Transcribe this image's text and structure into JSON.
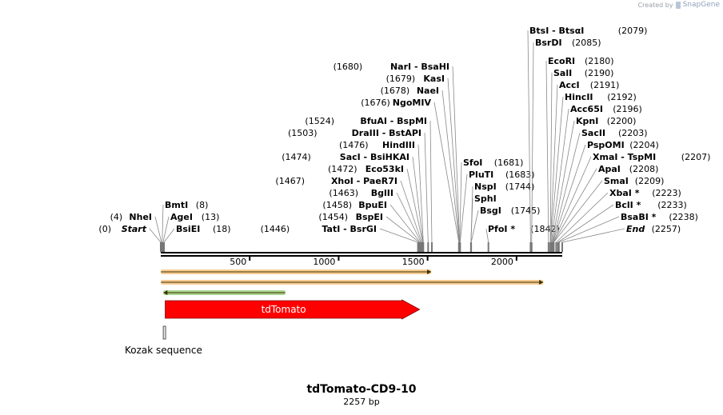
{
  "credit": {
    "prefix": "Created by",
    "brand": "SnapGene"
  },
  "map": {
    "name": "tdTomato-CD9-10",
    "length_label": "2257 bp",
    "length": 2257,
    "ticks": [
      {
        "pos": 500,
        "label": "500"
      },
      {
        "pos": 1000,
        "label": "1000"
      },
      {
        "pos": 1500,
        "label": "1500"
      },
      {
        "pos": 2000,
        "label": "2000"
      }
    ],
    "sites": [
      {
        "names": [
          "Start"
        ],
        "pos": 0,
        "pos_label": "(0)",
        "style": "italic"
      },
      {
        "names": [
          "NheI"
        ],
        "pos": 4,
        "pos_label": "(4)"
      },
      {
        "names": [
          "BmtI"
        ],
        "pos": 8,
        "pos_label": "(8)"
      },
      {
        "names": [
          "AgeI"
        ],
        "pos": 13,
        "pos_label": "(13)"
      },
      {
        "names": [
          "BsiEI"
        ],
        "pos": 18,
        "pos_label": "(18)"
      },
      {
        "names": [
          "TatI",
          "BsrGI"
        ],
        "pos": 1446,
        "pos_label": "(1446)"
      },
      {
        "names": [
          "BspEI"
        ],
        "pos": 1454,
        "pos_label": "(1454)"
      },
      {
        "names": [
          "BpuEI"
        ],
        "pos": 1458,
        "pos_label": "(1458)"
      },
      {
        "names": [
          "BglII"
        ],
        "pos": 1463,
        "pos_label": "(1463)"
      },
      {
        "names": [
          "XhoI",
          "PaeR7I"
        ],
        "pos": 1467,
        "pos_label": "(1467)"
      },
      {
        "names": [
          "Eco53kI"
        ],
        "pos": 1472,
        "pos_label": "(1472)"
      },
      {
        "names": [
          "SacI",
          "BsiHKAI"
        ],
        "pos": 1474,
        "pos_label": "(1474)"
      },
      {
        "names": [
          "HindIII"
        ],
        "pos": 1476,
        "pos_label": "(1476)"
      },
      {
        "names": [
          "DraIII",
          "BstAPI"
        ],
        "pos": 1503,
        "pos_label": "(1503)"
      },
      {
        "names": [
          "BfuAI",
          "BspMI"
        ],
        "pos": 1524,
        "pos_label": "(1524)"
      },
      {
        "names": [
          "NgoMIV"
        ],
        "pos": 1676,
        "pos_label": "(1676)"
      },
      {
        "names": [
          "NaeI"
        ],
        "pos": 1678,
        "pos_label": "(1678)"
      },
      {
        "names": [
          "KasI"
        ],
        "pos": 1679,
        "pos_label": "(1679)"
      },
      {
        "names": [
          "NarI",
          "BsaHI"
        ],
        "pos": 1680,
        "pos_label": "(1680)"
      },
      {
        "names": [
          "SfoI"
        ],
        "pos": 1681,
        "pos_label": "(1681)"
      },
      {
        "names": [
          "PluTI"
        ],
        "pos": 1683,
        "pos_label": "(1683)"
      },
      {
        "names": [
          "NspI"
        ],
        "pos": 1744,
        "pos_label": "(1744)"
      },
      {
        "names": [
          "SphI"
        ],
        "pos": 1744,
        "pos_label": ""
      },
      {
        "names": [
          "BsgI"
        ],
        "pos": 1745,
        "pos_label": "(1745)"
      },
      {
        "names": [
          "PfoI *"
        ],
        "pos": 1842,
        "pos_label": "(1842)"
      },
      {
        "names": [
          "BsrDI"
        ],
        "pos": 2085,
        "pos_label": "(2085)"
      },
      {
        "names": [
          "BtsI",
          "BtsαI"
        ],
        "pos": 2079,
        "pos_label": "(2079)"
      },
      {
        "names": [
          "EcoRI"
        ],
        "pos": 2180,
        "pos_label": "(2180)"
      },
      {
        "names": [
          "SalI"
        ],
        "pos": 2190,
        "pos_label": "(2190)"
      },
      {
        "names": [
          "AccI"
        ],
        "pos": 2191,
        "pos_label": "(2191)"
      },
      {
        "names": [
          "HincII"
        ],
        "pos": 2192,
        "pos_label": "(2192)"
      },
      {
        "names": [
          "Acc65I"
        ],
        "pos": 2196,
        "pos_label": "(2196)"
      },
      {
        "names": [
          "KpnI"
        ],
        "pos": 2200,
        "pos_label": "(2200)"
      },
      {
        "names": [
          "SacII"
        ],
        "pos": 2203,
        "pos_label": "(2203)"
      },
      {
        "names": [
          "PspOMI"
        ],
        "pos": 2204,
        "pos_label": "(2204)"
      },
      {
        "names": [
          "XmaI",
          "TspMI"
        ],
        "pos": 2207,
        "pos_label": "(2207)"
      },
      {
        "names": [
          "ApaI"
        ],
        "pos": 2208,
        "pos_label": "(2208)"
      },
      {
        "names": [
          "SmaI"
        ],
        "pos": 2209,
        "pos_label": "(2209)"
      },
      {
        "names": [
          "XbaI *"
        ],
        "pos": 2223,
        "pos_label": "(2223)"
      },
      {
        "names": [
          "BclI *"
        ],
        "pos": 2233,
        "pos_label": "(2233)"
      },
      {
        "names": [
          "BsaBI *"
        ],
        "pos": 2238,
        "pos_label": "(2238)"
      },
      {
        "names": [
          "End"
        ],
        "pos": 2257,
        "pos_label": "(2257)",
        "style": "italic"
      }
    ],
    "features": [
      {
        "type": "primer",
        "direction": "forward",
        "start": 1,
        "end": 1520,
        "color": "#f2a33a"
      },
      {
        "type": "primer",
        "direction": "forward",
        "start": 1,
        "end": 2150,
        "color": "#f2a33a"
      },
      {
        "type": "primer",
        "direction": "reverse",
        "start": 15,
        "end": 700,
        "color": "#62b331"
      },
      {
        "type": "cds",
        "label": "tdTomato",
        "start": 25,
        "end": 1455,
        "color": "#ff0000"
      },
      {
        "type": "misc",
        "label": "Kozak sequence",
        "start": 14,
        "end": 22
      }
    ]
  }
}
